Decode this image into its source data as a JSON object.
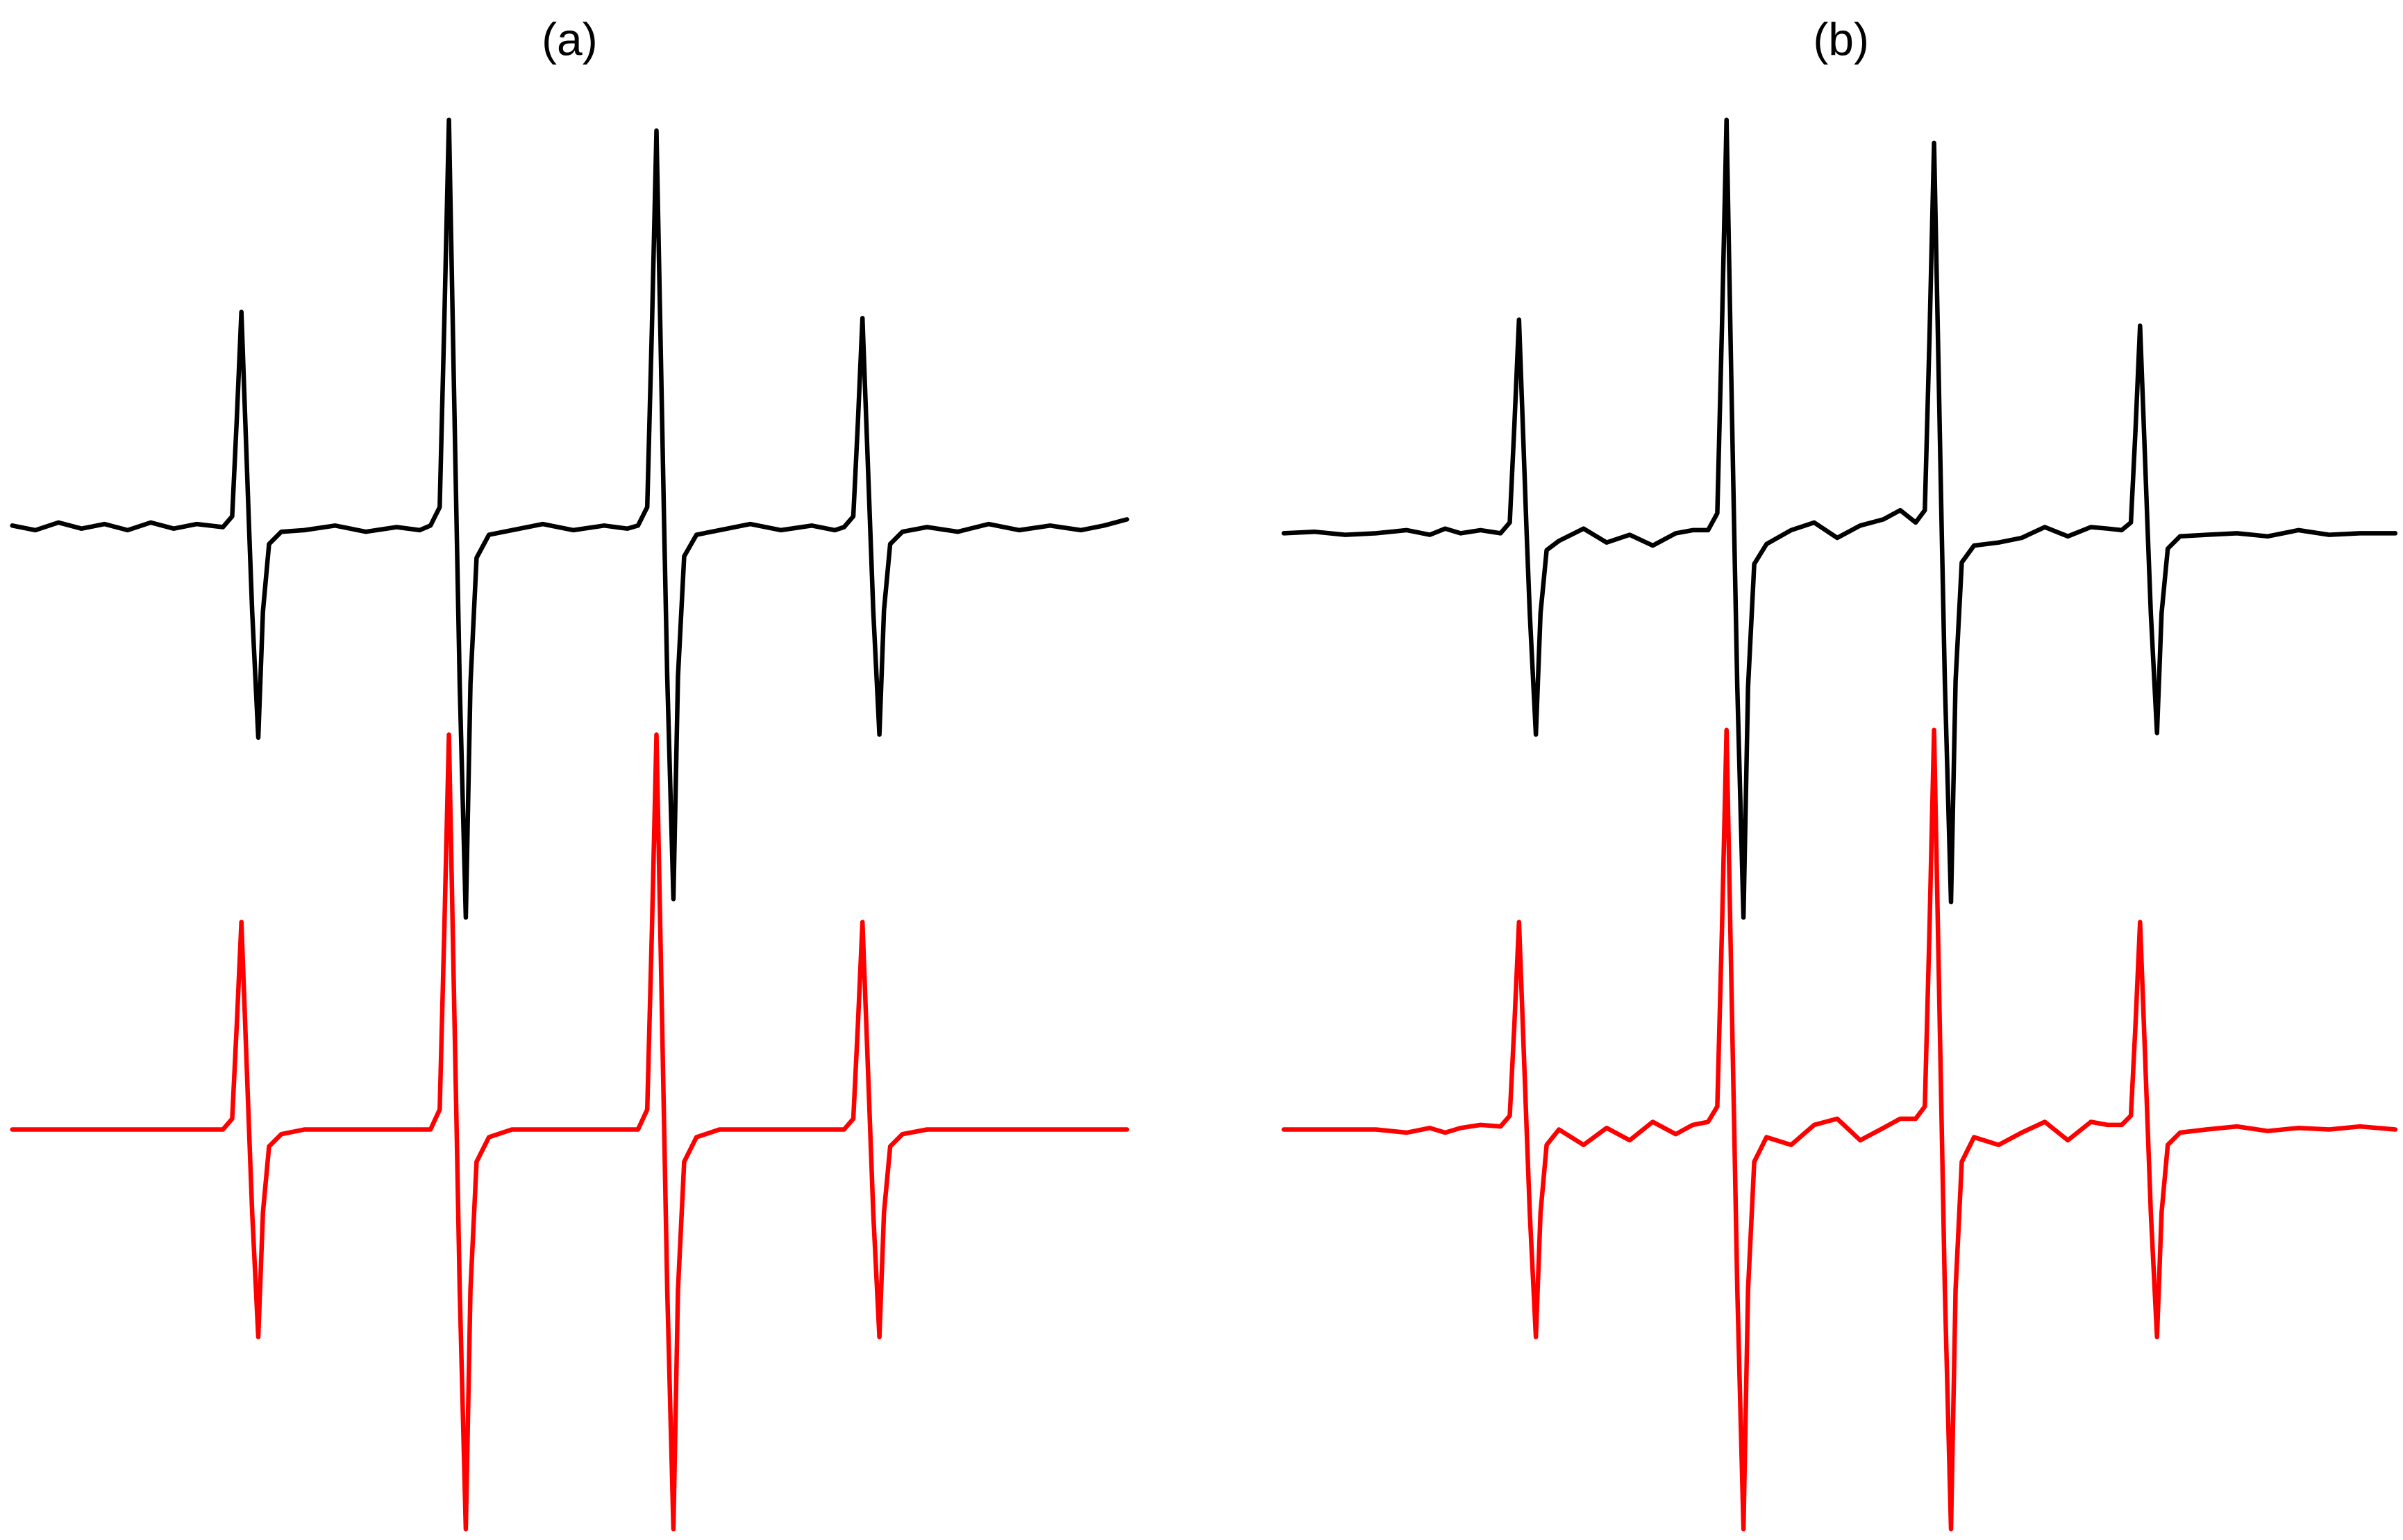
{
  "chart_data": [
    {
      "type": "line",
      "title": "(a)",
      "x": [
        0,
        15,
        30,
        45,
        60,
        75,
        90,
        105,
        120,
        137,
        143,
        146,
        149,
        152,
        154,
        156,
        160,
        163,
        167,
        175,
        190,
        210,
        230,
        250,
        265,
        272,
        278,
        281,
        284,
        287,
        289,
        291,
        295,
        298,
        302,
        310,
        325,
        345,
        365,
        385,
        400,
        407,
        413,
        416,
        419,
        422,
        424,
        426,
        430,
        433,
        437,
        445,
        460,
        480,
        500,
        520,
        535,
        541,
        547,
        550,
        553,
        556,
        558,
        560,
        564,
        567,
        571,
        579,
        595,
        615,
        635,
        655,
        675,
        695,
        710,
        725
      ],
      "xlim": [
        0,
        725
      ],
      "ylim": [
        0,
        9.4
      ],
      "series": [
        {
          "color": "#000000",
          "values": [
            6.58,
            6.55,
            6.6,
            6.56,
            6.59,
            6.55,
            6.6,
            6.56,
            6.59,
            6.57,
            6.64,
            7.27,
            7.97,
            7.13,
            6.57,
            6.02,
            5.2,
            6.02,
            6.46,
            6.54,
            6.55,
            6.58,
            6.54,
            6.57,
            6.55,
            6.58,
            6.7,
            7.9,
            9.22,
            7.63,
            6.57,
            5.55,
            4.03,
            5.55,
            6.37,
            6.52,
            6.55,
            6.59,
            6.55,
            6.58,
            6.56,
            6.58,
            6.7,
            7.86,
            9.15,
            7.6,
            6.57,
            5.6,
            4.15,
            5.6,
            6.38,
            6.52,
            6.55,
            6.59,
            6.55,
            6.58,
            6.55,
            6.57,
            6.64,
            7.25,
            7.93,
            7.11,
            6.57,
            6.03,
            5.22,
            6.03,
            6.46,
            6.54,
            6.57,
            6.54,
            6.59,
            6.55,
            6.58,
            6.55,
            6.58,
            6.62
          ]
        },
        {
          "color": "#ff0000",
          "values": [
            2.65,
            2.65,
            2.65,
            2.65,
            2.65,
            2.65,
            2.65,
            2.65,
            2.65,
            2.65,
            2.72,
            3.33,
            4.0,
            3.19,
            2.65,
            2.11,
            1.3,
            2.11,
            2.54,
            2.62,
            2.65,
            2.65,
            2.65,
            2.65,
            2.65,
            2.65,
            2.78,
            3.94,
            5.22,
            3.68,
            2.65,
            1.61,
            0.05,
            1.61,
            2.44,
            2.6,
            2.65,
            2.65,
            2.65,
            2.65,
            2.65,
            2.65,
            2.78,
            3.94,
            5.22,
            3.68,
            2.65,
            1.61,
            0.05,
            1.61,
            2.44,
            2.6,
            2.65,
            2.65,
            2.65,
            2.65,
            2.65,
            2.65,
            2.72,
            3.33,
            4.0,
            3.19,
            2.65,
            2.11,
            1.3,
            2.11,
            2.54,
            2.62,
            2.65,
            2.65,
            2.65,
            2.65,
            2.65,
            2.65,
            2.65,
            2.65
          ]
        }
      ]
    },
    {
      "type": "line",
      "title": "(b)",
      "x": [
        0,
        20,
        40,
        60,
        80,
        95,
        105,
        115,
        128,
        141,
        147,
        150,
        153,
        156,
        158,
        160,
        164,
        167,
        171,
        179,
        195,
        210,
        225,
        240,
        255,
        266,
        276,
        282,
        285,
        288,
        291,
        293,
        295,
        299,
        302,
        306,
        314,
        330,
        345,
        360,
        375,
        390,
        401,
        411,
        417,
        420,
        423,
        426,
        428,
        430,
        434,
        437,
        441,
        449,
        465,
        480,
        495,
        510,
        525,
        536,
        545,
        551,
        554,
        557,
        560,
        562,
        564,
        568,
        571,
        575,
        583,
        600,
        620,
        640,
        660,
        680,
        700,
        723
      ],
      "xlim": [
        0,
        725
      ],
      "ylim": [
        0,
        9.4
      ],
      "series": [
        {
          "color": "#000000",
          "values": [
            6.53,
            6.54,
            6.52,
            6.53,
            6.55,
            6.52,
            6.56,
            6.53,
            6.55,
            6.53,
            6.6,
            7.23,
            7.92,
            7.09,
            6.53,
            6.01,
            5.22,
            6.01,
            6.42,
            6.48,
            6.56,
            6.47,
            6.52,
            6.45,
            6.53,
            6.55,
            6.55,
            6.66,
            7.87,
            9.22,
            7.6,
            6.53,
            5.53,
            4.03,
            5.53,
            6.33,
            6.46,
            6.55,
            6.6,
            6.5,
            6.58,
            6.62,
            6.68,
            6.6,
            6.68,
            7.8,
            9.07,
            7.55,
            6.53,
            5.57,
            4.13,
            5.57,
            6.34,
            6.45,
            6.47,
            6.5,
            6.57,
            6.51,
            6.57,
            6.56,
            6.55,
            6.6,
            7.2,
            7.88,
            7.07,
            6.53,
            6.01,
            5.23,
            6.01,
            6.43,
            6.51,
            6.52,
            6.53,
            6.51,
            6.55,
            6.52,
            6.53,
            6.53
          ]
        },
        {
          "color": "#ff0000",
          "values": [
            2.65,
            2.65,
            2.65,
            2.65,
            2.63,
            2.66,
            2.63,
            2.66,
            2.68,
            2.67,
            2.74,
            3.33,
            4.0,
            3.19,
            2.65,
            2.11,
            1.3,
            2.11,
            2.55,
            2.65,
            2.55,
            2.66,
            2.58,
            2.7,
            2.62,
            2.68,
            2.7,
            2.8,
            3.95,
            5.25,
            3.69,
            2.65,
            1.61,
            0.05,
            1.61,
            2.44,
            2.6,
            2.55,
            2.68,
            2.72,
            2.58,
            2.66,
            2.72,
            2.72,
            2.8,
            3.95,
            5.25,
            3.69,
            2.65,
            1.61,
            0.05,
            1.61,
            2.44,
            2.6,
            2.55,
            2.63,
            2.7,
            2.58,
            2.7,
            2.68,
            2.68,
            2.74,
            3.33,
            4.0,
            3.19,
            2.65,
            2.11,
            1.3,
            2.11,
            2.55,
            2.63,
            2.65,
            2.67,
            2.64,
            2.66,
            2.65,
            2.67,
            2.65
          ]
        }
      ]
    }
  ]
}
